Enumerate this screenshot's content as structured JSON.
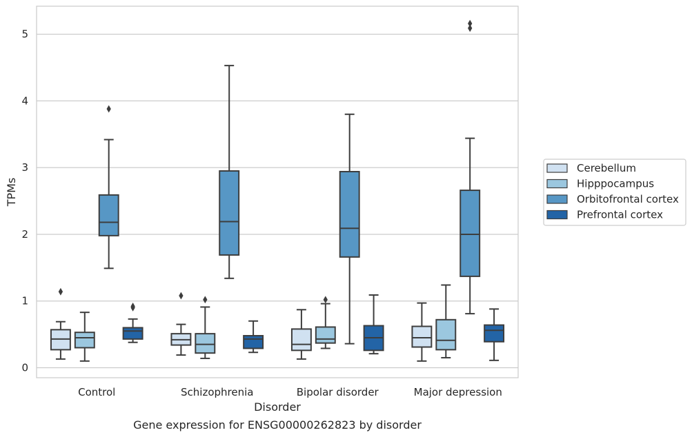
{
  "chart_data": {
    "type": "boxplot",
    "caption": "Gene expression for ENSG00000262823 by disorder",
    "xlabel": "Disorder",
    "ylabel": "TPMs",
    "ylim": [
      -0.15,
      5.42
    ],
    "yticks": [
      0,
      1,
      2,
      3,
      4,
      5
    ],
    "grid": "horizontal",
    "legend_position": "right",
    "categories": [
      "Control",
      "Schizophrenia",
      "Bipolar disorder",
      "Major depression"
    ],
    "series": [
      {
        "name": "Cerebellum",
        "color": "#d0e1f1",
        "boxes": [
          {
            "whislo": 0.13,
            "q1": 0.27,
            "med": 0.43,
            "q3": 0.57,
            "whishi": 0.69,
            "fliers": [
              1.14
            ]
          },
          {
            "whislo": 0.19,
            "q1": 0.34,
            "med": 0.42,
            "q3": 0.51,
            "whishi": 0.65,
            "fliers": [
              1.08
            ]
          },
          {
            "whislo": 0.13,
            "q1": 0.26,
            "med": 0.35,
            "q3": 0.58,
            "whishi": 0.87,
            "fliers": []
          },
          {
            "whislo": 0.1,
            "q1": 0.31,
            "med": 0.45,
            "q3": 0.62,
            "whishi": 0.97,
            "fliers": []
          }
        ]
      },
      {
        "name": "Hipppocampus",
        "color": "#9bc7df",
        "boxes": [
          {
            "whislo": 0.1,
            "q1": 0.3,
            "med": 0.45,
            "q3": 0.53,
            "whishi": 0.83,
            "fliers": []
          },
          {
            "whislo": 0.14,
            "q1": 0.22,
            "med": 0.35,
            "q3": 0.51,
            "whishi": 0.91,
            "fliers": [
              1.02
            ]
          },
          {
            "whislo": 0.29,
            "q1": 0.37,
            "med": 0.43,
            "q3": 0.61,
            "whishi": 0.96,
            "fliers": [
              1.02
            ]
          },
          {
            "whislo": 0.15,
            "q1": 0.27,
            "med": 0.41,
            "q3": 0.72,
            "whishi": 1.24,
            "fliers": []
          }
        ]
      },
      {
        "name": "Orbitofrontal cortex",
        "color": "#5797c5",
        "boxes": [
          {
            "whislo": 1.49,
            "q1": 1.98,
            "med": 2.18,
            "q3": 2.59,
            "whishi": 3.42,
            "fliers": [
              3.88
            ]
          },
          {
            "whislo": 1.34,
            "q1": 1.69,
            "med": 2.19,
            "q3": 2.95,
            "whishi": 4.53,
            "fliers": []
          },
          {
            "whislo": 0.36,
            "q1": 1.66,
            "med": 2.09,
            "q3": 2.94,
            "whishi": 3.8,
            "fliers": []
          },
          {
            "whislo": 0.81,
            "q1": 1.37,
            "med": 2.0,
            "q3": 2.66,
            "whishi": 3.44,
            "fliers": [
              5.09,
              5.16
            ]
          }
        ]
      },
      {
        "name": "Prefrontal cortex",
        "color": "#2364a6",
        "boxes": [
          {
            "whislo": 0.38,
            "q1": 0.43,
            "med": 0.55,
            "q3": 0.6,
            "whishi": 0.73,
            "fliers": [
              0.9,
              0.92
            ]
          },
          {
            "whislo": 0.23,
            "q1": 0.29,
            "med": 0.43,
            "q3": 0.48,
            "whishi": 0.7,
            "fliers": []
          },
          {
            "whislo": 0.21,
            "q1": 0.26,
            "med": 0.45,
            "q3": 0.63,
            "whishi": 1.09,
            "fliers": []
          },
          {
            "whislo": 0.11,
            "q1": 0.39,
            "med": 0.56,
            "q3": 0.64,
            "whishi": 0.88,
            "fliers": []
          }
        ]
      }
    ]
  }
}
